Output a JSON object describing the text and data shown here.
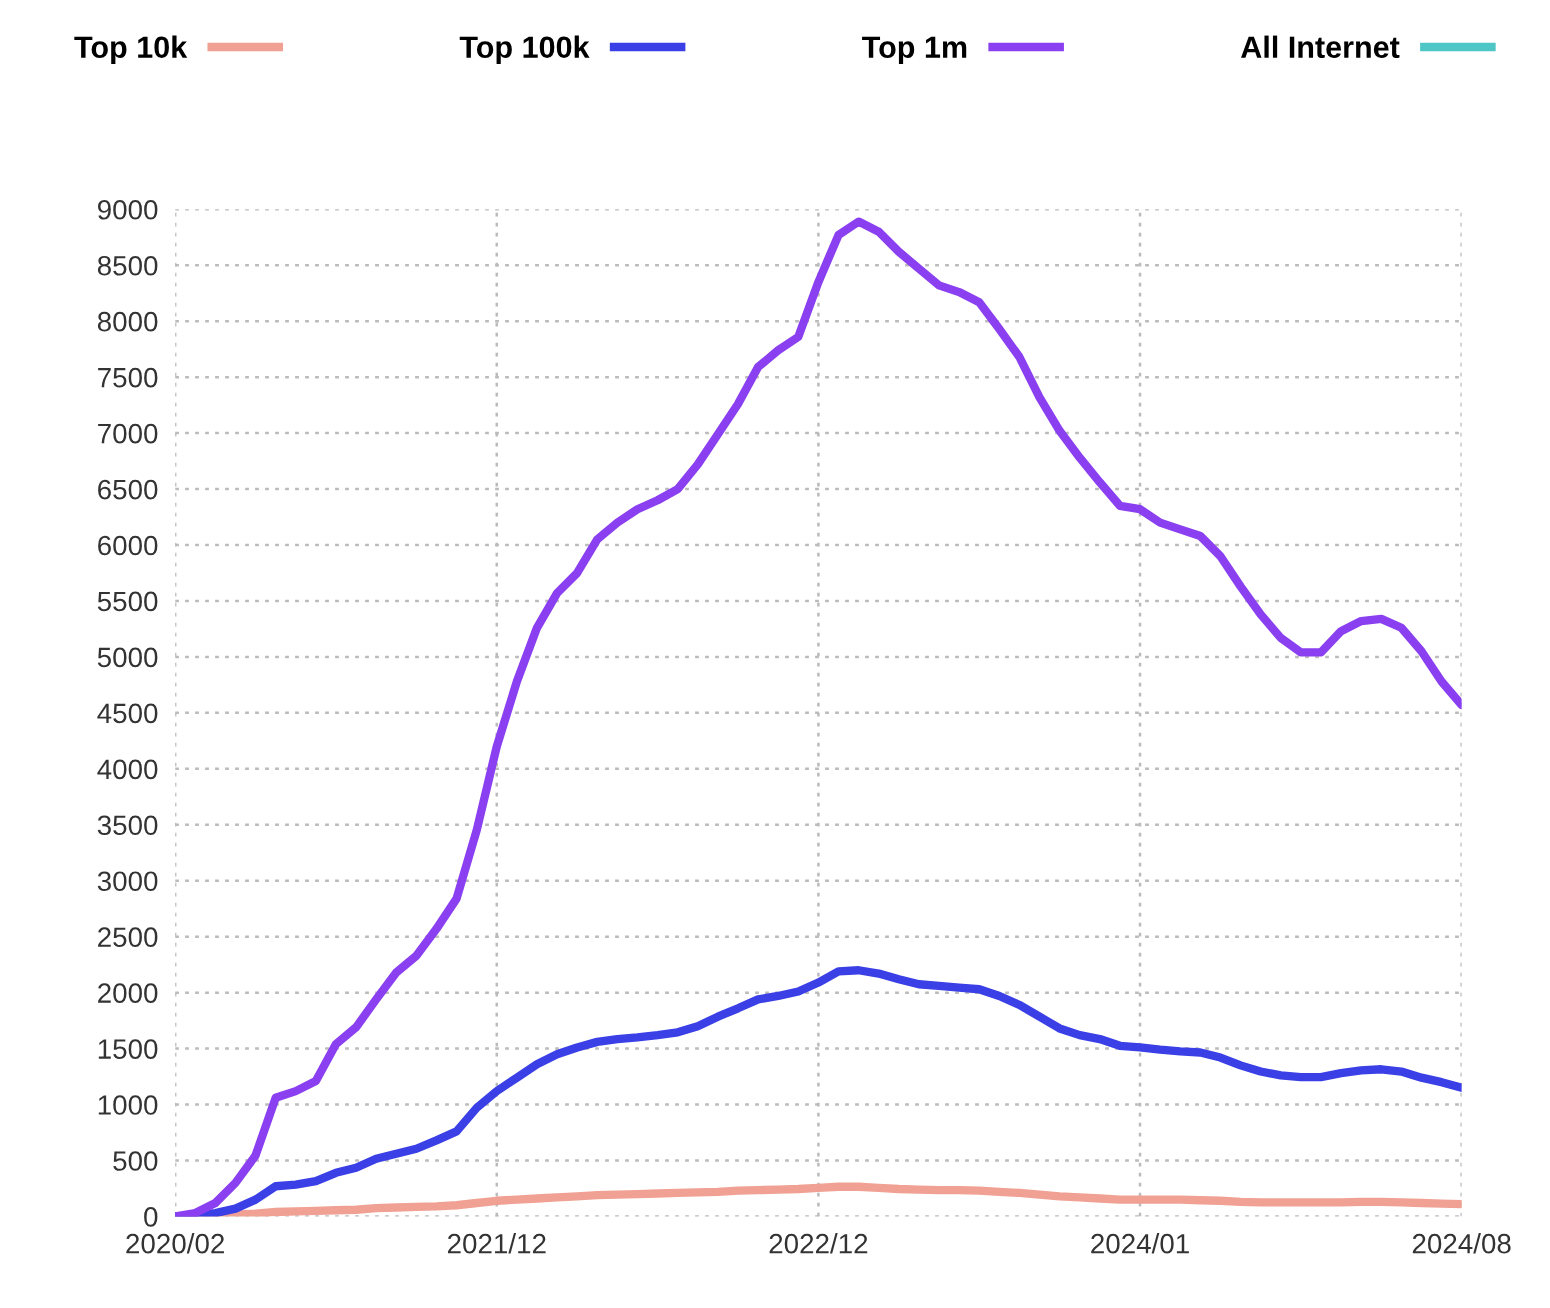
{
  "chart_data": {
    "type": "line",
    "categories": [
      "2020/02",
      null,
      null,
      null,
      null,
      null,
      null,
      null,
      null,
      null,
      null,
      null,
      null,
      null,
      null,
      null,
      "2021/12",
      null,
      null,
      null,
      null,
      null,
      null,
      null,
      null,
      null,
      null,
      null,
      null,
      null,
      null,
      null,
      "2022/12",
      null,
      null,
      null,
      null,
      null,
      null,
      null,
      null,
      null,
      null,
      null,
      null,
      null,
      null,
      null,
      "2024/01",
      null,
      null,
      null,
      null,
      null,
      null,
      null,
      null,
      null,
      null,
      null,
      null,
      null,
      null,
      null,
      "2024/08"
    ],
    "series": [
      {
        "name": "Top 10k",
        "color": "#f0a193",
        "values": [
          0,
          0,
          5,
          15,
          25,
          40,
          45,
          50,
          55,
          60,
          75,
          80,
          85,
          90,
          100,
          120,
          140,
          150,
          160,
          170,
          180,
          190,
          195,
          200,
          205,
          210,
          215,
          220,
          230,
          235,
          240,
          245,
          255,
          265,
          265,
          255,
          245,
          240,
          235,
          235,
          230,
          220,
          210,
          195,
          180,
          170,
          160,
          150,
          150,
          150,
          150,
          145,
          140,
          130,
          125,
          125,
          125,
          125,
          125,
          130,
          130,
          125,
          120,
          115,
          110
        ]
      },
      {
        "name": "Top 100k",
        "color": "#3b3fe6",
        "values": [
          0,
          10,
          30,
          70,
          150,
          270,
          285,
          315,
          390,
          435,
          515,
          560,
          605,
          680,
          760,
          970,
          1120,
          1240,
          1360,
          1450,
          1510,
          1560,
          1585,
          1600,
          1620,
          1645,
          1700,
          1785,
          1860,
          1940,
          1970,
          2010,
          2090,
          2190,
          2200,
          2170,
          2120,
          2075,
          2060,
          2045,
          2030,
          1970,
          1890,
          1785,
          1680,
          1620,
          1585,
          1525,
          1510,
          1490,
          1475,
          1465,
          1420,
          1350,
          1295,
          1260,
          1245,
          1245,
          1280,
          1305,
          1315,
          1295,
          1240,
          1200,
          1150
        ]
      },
      {
        "name": "Top 1m",
        "color": "#8a3ff0",
        "values": [
          0,
          30,
          120,
          300,
          545,
          1060,
          1120,
          1210,
          1540,
          1690,
          1940,
          2180,
          2330,
          2570,
          2840,
          3450,
          4200,
          4780,
          5260,
          5570,
          5750,
          6050,
          6200,
          6320,
          6400,
          6500,
          6720,
          6990,
          7260,
          7590,
          7740,
          7860,
          8350,
          8770,
          8890,
          8800,
          8620,
          8470,
          8320,
          8260,
          8170,
          7930,
          7680,
          7320,
          7020,
          6780,
          6560,
          6350,
          6320,
          6200,
          6140,
          6080,
          5900,
          5630,
          5380,
          5170,
          5040,
          5040,
          5230,
          5320,
          5340,
          5260,
          5050,
          4780,
          4570
        ]
      },
      {
        "name": "All Internet",
        "color": "#4fc6c6",
        "values": [
          null,
          null,
          null,
          null,
          null,
          null,
          null,
          null,
          null,
          null,
          null,
          null,
          null,
          null,
          null,
          null,
          null,
          null,
          null,
          null,
          null,
          null,
          null,
          null,
          null,
          null,
          null,
          null,
          null,
          null,
          null,
          null,
          null,
          null,
          null,
          null,
          null,
          null,
          null,
          null,
          null,
          null,
          null,
          null,
          null,
          null,
          null,
          null,
          null,
          null,
          null,
          null,
          null,
          null,
          null,
          null,
          null,
          null,
          null,
          null,
          null,
          null,
          null,
          null,
          null
        ]
      }
    ],
    "ylim": [
      0,
      9000
    ],
    "yticks": [
      0,
      500,
      1000,
      1500,
      2000,
      2500,
      3000,
      3500,
      4000,
      4500,
      5000,
      5500,
      6000,
      6500,
      7000,
      7500,
      8000,
      8500,
      9000
    ],
    "grid": true,
    "legend": "top",
    "line_style": "solid",
    "marker": "none"
  }
}
